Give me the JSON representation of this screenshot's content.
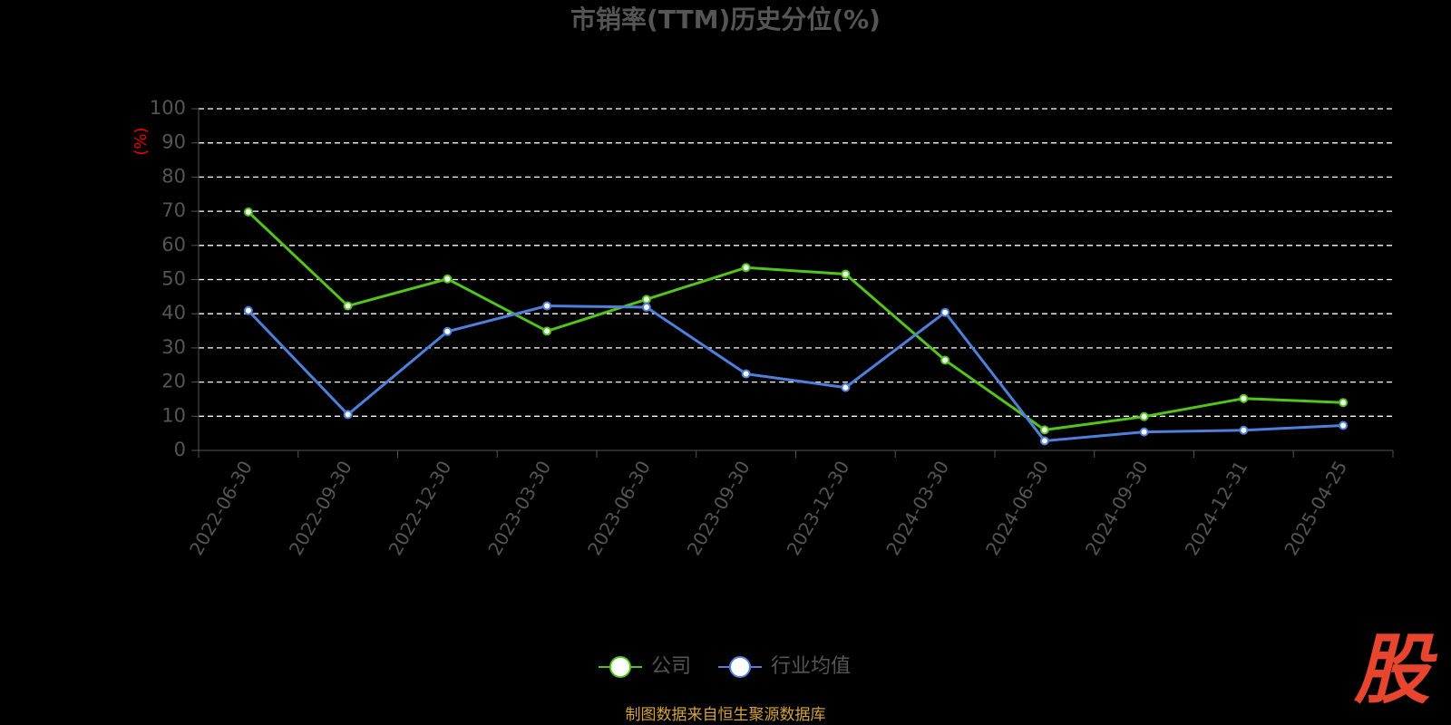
{
  "chart_data": {
    "type": "line",
    "title": "市销率(TTM)历史分位(%)",
    "y_label": "(%)",
    "categories": [
      "2022-06-30",
      "2022-09-30",
      "2022-12-30",
      "2023-03-30",
      "2023-06-30",
      "2023-09-30",
      "2023-12-30",
      "2024-03-30",
      "2024-06-30",
      "2024-09-30",
      "2024-12-31",
      "2025-04-25"
    ],
    "series": [
      {
        "name": "公司",
        "color": "#52c41a",
        "values": [
          69.8,
          42.3,
          50.2,
          34.9,
          44.2,
          53.5,
          51.6,
          26.4,
          6.0,
          9.9,
          15.2,
          14.0
        ]
      },
      {
        "name": "行业均值",
        "color": "#4e7fdb",
        "values": [
          40.9,
          10.5,
          34.8,
          42.3,
          41.9,
          22.4,
          18.4,
          40.4,
          2.8,
          5.4,
          5.9,
          7.3
        ]
      }
    ],
    "ylim": [
      0,
      100
    ],
    "yticks": [
      0,
      10,
      20,
      30,
      40,
      50,
      60,
      70,
      80,
      90,
      100
    ],
    "grid": true,
    "legend": "bottom",
    "source": "制图数据来自恒生聚源数据库",
    "watermark": "股"
  }
}
